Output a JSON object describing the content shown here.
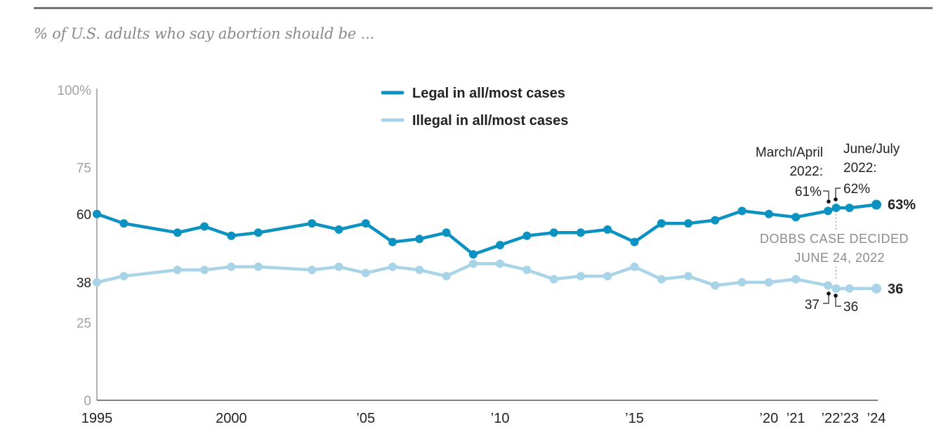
{
  "subtitle": "% of U.S. adults who say abortion should be ...",
  "colors": {
    "legal": "#0b92c1",
    "illegal": "#a9d4e8",
    "axis": "#9a9a9a",
    "text": "#222222",
    "muted": "#8c8c8c"
  },
  "legend": {
    "legal": "Legal in all/most cases",
    "illegal": "Illegal in all/most cases"
  },
  "end_labels": {
    "legal": "63%",
    "illegal": "36"
  },
  "annotations": {
    "march_april_1": "March/April",
    "march_april_2": "2022:",
    "june_july_1": "June/July",
    "june_july_2": "2022:",
    "legal_mar": "61%",
    "legal_jun": "62%",
    "illegal_mar": "37",
    "illegal_jun": "36",
    "dobbs_1": "DOBBS CASE DECIDED",
    "dobbs_2": "JUNE 24, 2022"
  },
  "chart_data": {
    "type": "line",
    "title": "% of U.S. adults who say abortion should be ...",
    "xlabel": "",
    "ylabel": "",
    "ylim": [
      0,
      100
    ],
    "xlim": [
      1995,
      2024
    ],
    "y_ticks": [
      {
        "value": 100,
        "label": "100%",
        "style": "muted"
      },
      {
        "value": 75,
        "label": "75",
        "style": "muted"
      },
      {
        "value": 60,
        "label": "60",
        "style": "dark"
      },
      {
        "value": 38,
        "label": "38",
        "style": "dark"
      },
      {
        "value": 25,
        "label": "25",
        "style": "muted"
      },
      {
        "value": 0,
        "label": "0",
        "style": "muted"
      }
    ],
    "x_ticks": [
      {
        "value": 1995,
        "label": "1995"
      },
      {
        "value": 2000,
        "label": "2000"
      },
      {
        "value": 2005,
        "label": "’05"
      },
      {
        "value": 2010,
        "label": "’10"
      },
      {
        "value": 2015,
        "label": "’15"
      },
      {
        "value": 2020,
        "label": "’20"
      },
      {
        "value": 2021,
        "label": "’21"
      },
      {
        "value": 2022.3,
        "label": "’22"
      },
      {
        "value": 2023,
        "label": "’23"
      },
      {
        "value": 2024,
        "label": "’24"
      }
    ],
    "dobbs_x": 2022.5,
    "series": [
      {
        "name": "Legal in all/most cases",
        "key": "legal",
        "points": [
          [
            1995,
            60
          ],
          [
            1996,
            57
          ],
          [
            1998,
            54
          ],
          [
            1999,
            56
          ],
          [
            2000,
            53
          ],
          [
            2001,
            54
          ],
          [
            2003,
            57
          ],
          [
            2004,
            55
          ],
          [
            2005,
            57
          ],
          [
            2006,
            51
          ],
          [
            2007,
            52
          ],
          [
            2008,
            54
          ],
          [
            2009,
            47
          ],
          [
            2010,
            50
          ],
          [
            2011,
            53
          ],
          [
            2012,
            54
          ],
          [
            2013,
            54
          ],
          [
            2014,
            55
          ],
          [
            2015,
            51
          ],
          [
            2016,
            57
          ],
          [
            2017,
            57
          ],
          [
            2018,
            58
          ],
          [
            2019,
            61
          ],
          [
            2020,
            60
          ],
          [
            2021,
            59
          ],
          [
            2022.2,
            61
          ],
          [
            2022.5,
            62
          ],
          [
            2023,
            62
          ],
          [
            2024,
            63
          ]
        ]
      },
      {
        "name": "Illegal in all/most cases",
        "key": "illegal",
        "points": [
          [
            1995,
            38
          ],
          [
            1996,
            40
          ],
          [
            1998,
            42
          ],
          [
            1999,
            42
          ],
          [
            2000,
            43
          ],
          [
            2001,
            43
          ],
          [
            2003,
            42
          ],
          [
            2004,
            43
          ],
          [
            2005,
            41
          ],
          [
            2006,
            43
          ],
          [
            2007,
            42
          ],
          [
            2008,
            40
          ],
          [
            2009,
            44
          ],
          [
            2010,
            44
          ],
          [
            2011,
            42
          ],
          [
            2012,
            39
          ],
          [
            2013,
            40
          ],
          [
            2014,
            40
          ],
          [
            2015,
            43
          ],
          [
            2016,
            39
          ],
          [
            2017,
            40
          ],
          [
            2018,
            37
          ],
          [
            2019,
            38
          ],
          [
            2020,
            38
          ],
          [
            2021,
            39
          ],
          [
            2022.2,
            37
          ],
          [
            2022.5,
            36
          ],
          [
            2023,
            36
          ],
          [
            2024,
            36
          ]
        ]
      }
    ]
  }
}
